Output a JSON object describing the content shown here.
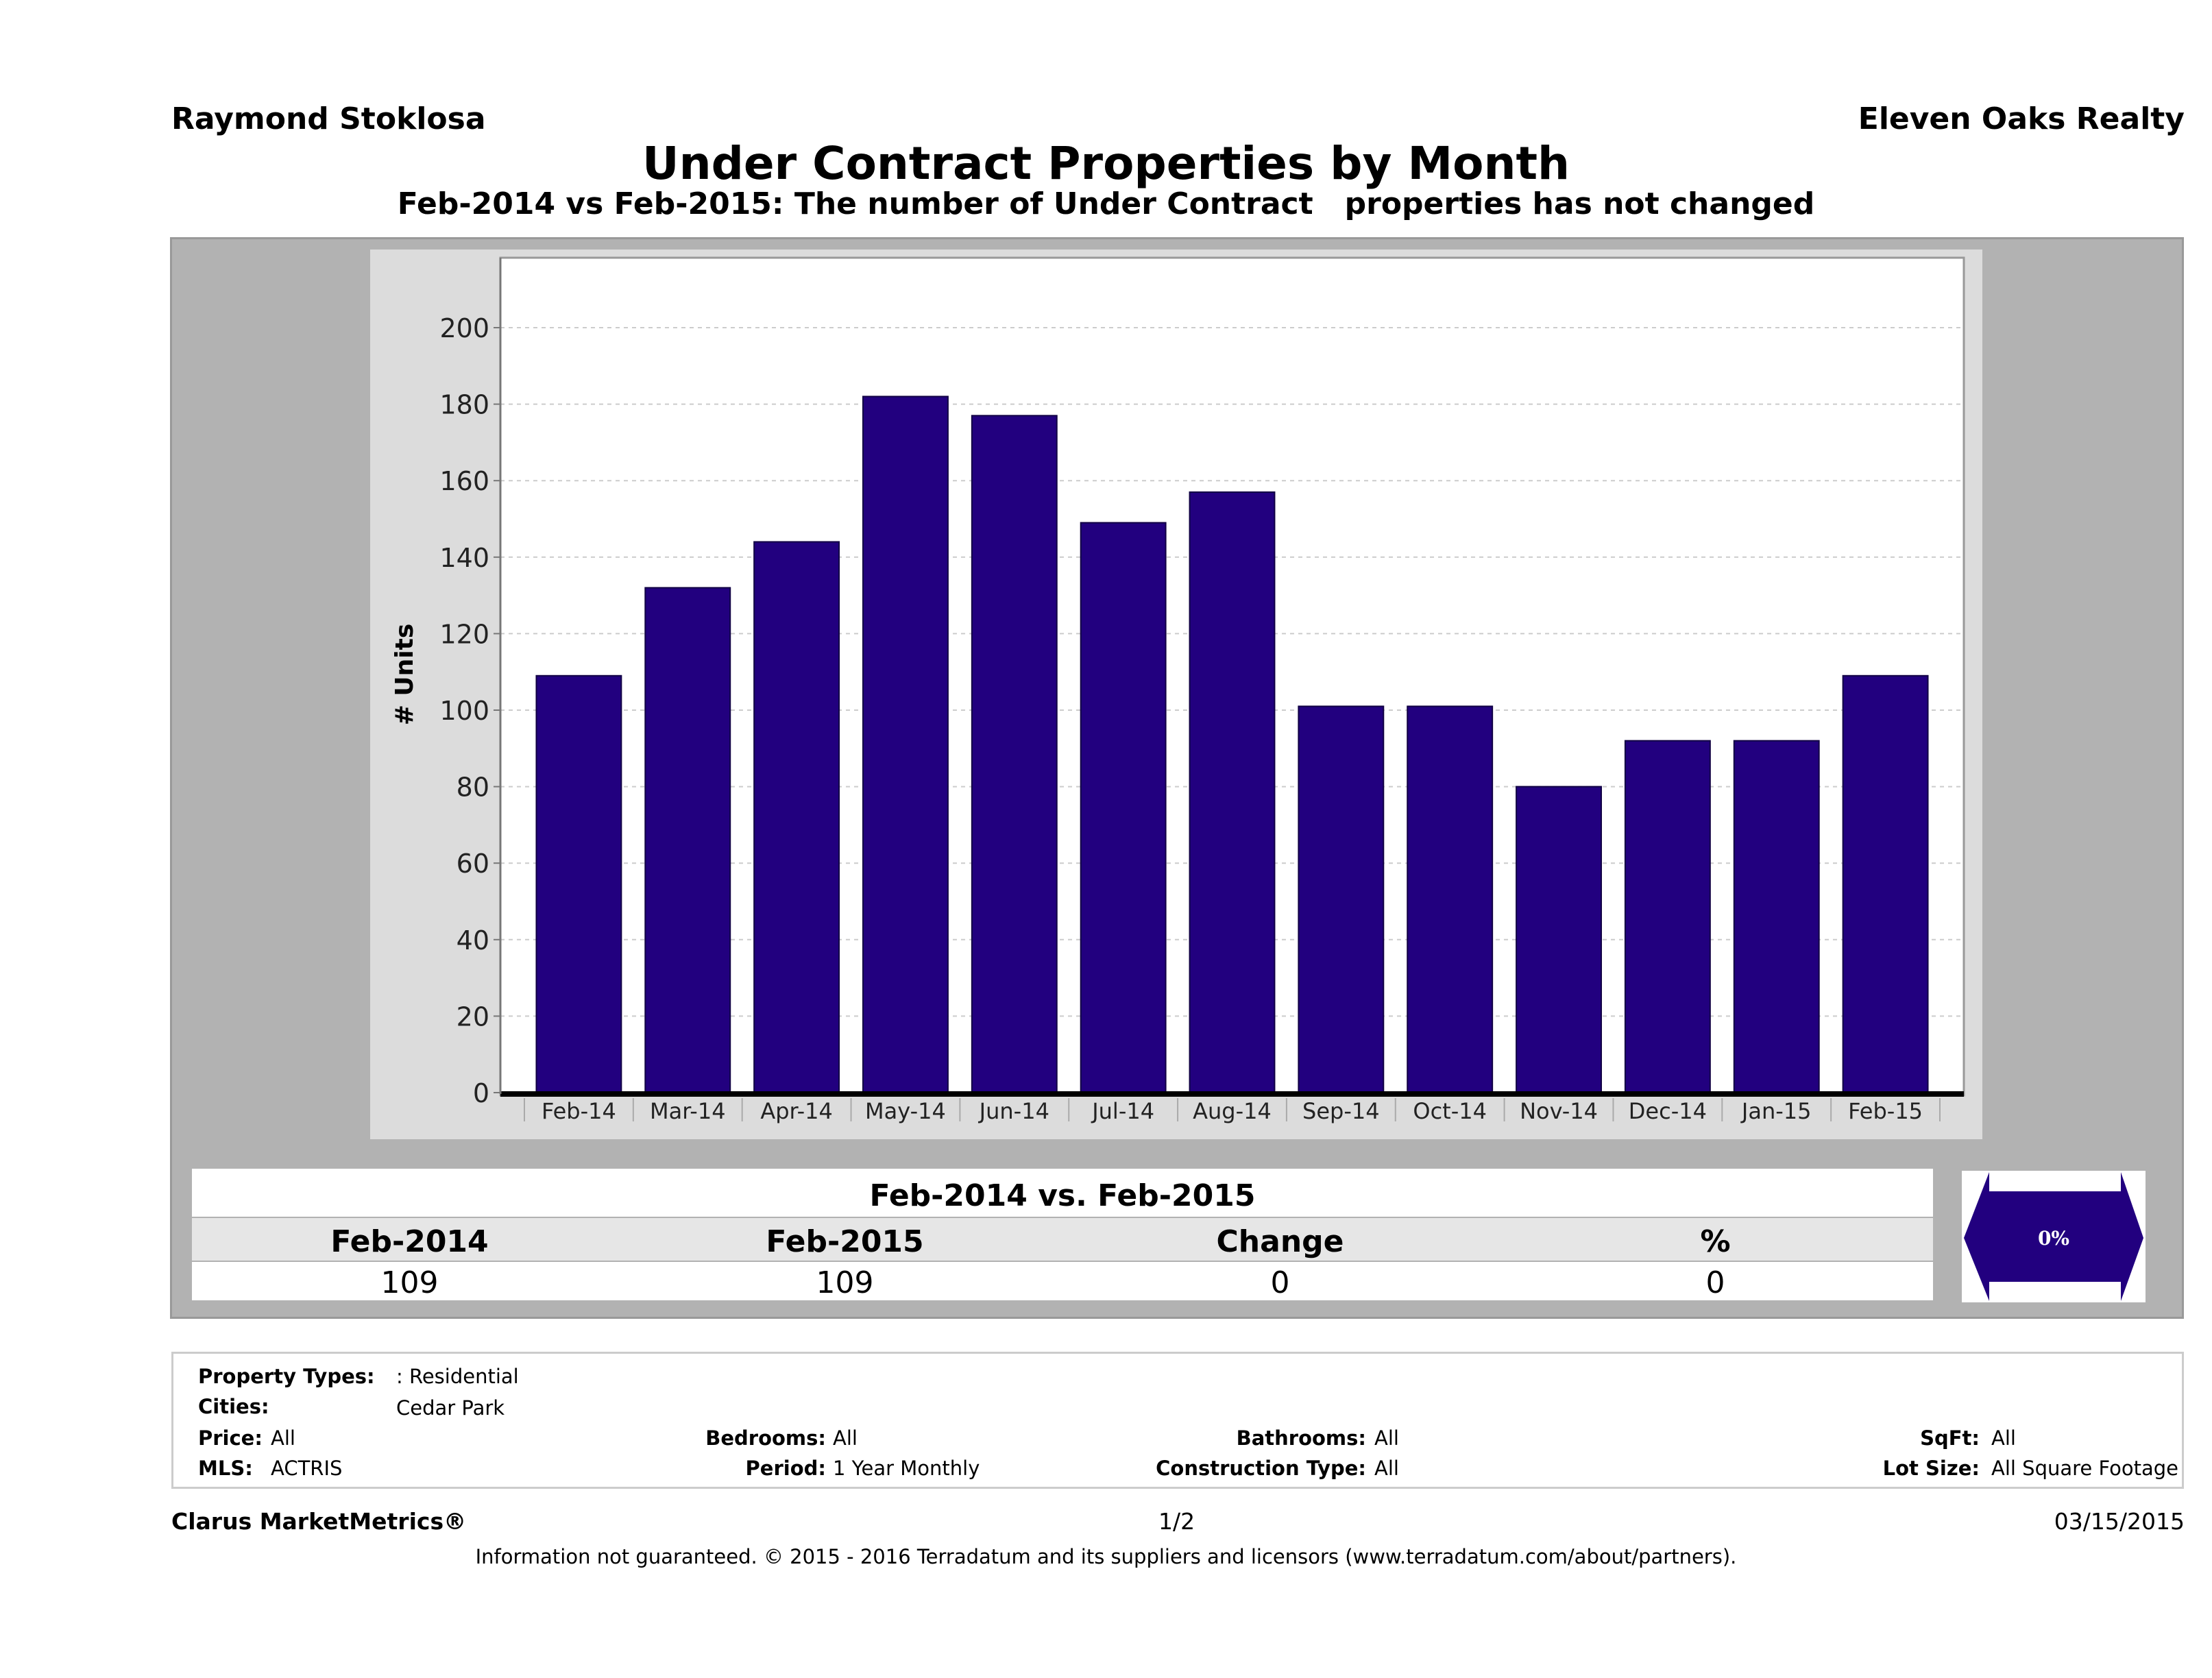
{
  "header": {
    "agent_name": "Raymond Stoklosa",
    "company": "Eleven Oaks Realty",
    "title": "Under Contract Properties by Month",
    "subtitle": "Feb-2014 vs Feb-2015: The number of Under Contract   properties has not changed"
  },
  "chart_data": {
    "type": "bar",
    "title": "Under Contract Properties by Month",
    "xlabel": "",
    "ylabel": "# Units",
    "categories": [
      "Feb-14",
      "Mar-14",
      "Apr-14",
      "May-14",
      "Jun-14",
      "Jul-14",
      "Aug-14",
      "Sep-14",
      "Oct-14",
      "Nov-14",
      "Dec-14",
      "Jan-15",
      "Feb-15"
    ],
    "values": [
      109,
      132,
      144,
      182,
      177,
      149,
      157,
      101,
      101,
      80,
      92,
      92,
      109
    ],
    "ylim": [
      0,
      220
    ],
    "yticks": [
      0,
      20,
      40,
      60,
      80,
      100,
      120,
      140,
      160,
      180,
      200
    ],
    "grid": true,
    "bar_color": "#22007f"
  },
  "comparison": {
    "heading": "Feb-2014 vs. Feb-2015",
    "columns": [
      "Feb-2014",
      "Feb-2015",
      "Change",
      "%"
    ],
    "values": [
      "109",
      "109",
      "0",
      "0"
    ],
    "badge_label": "0%",
    "badge_color": "#22007f"
  },
  "filters": {
    "property_types": {
      "label": "Property Types:",
      "value": ": Residential"
    },
    "cities": {
      "label": "Cities:",
      "value": "Cedar Park"
    },
    "price": {
      "label": "Price:",
      "value": "All"
    },
    "mls": {
      "label": "MLS:",
      "value": "ACTRIS"
    },
    "bedrooms": {
      "label": "Bedrooms:",
      "value": "All"
    },
    "period": {
      "label": "Period:",
      "value": "1 Year Monthly"
    },
    "bathrooms": {
      "label": "Bathrooms:",
      "value": "All"
    },
    "construction_type": {
      "label": "Construction Type:",
      "value": "All"
    },
    "sqft": {
      "label": "SqFt:",
      "value": "All"
    },
    "lot_size": {
      "label": "Lot Size:",
      "value": "All Square Footage"
    }
  },
  "footer": {
    "brand": "Clarus MarketMetrics®",
    "page": "1/2",
    "date": "03/15/2015",
    "disclaimer": "Information not guaranteed. © 2015 - 2016 Terradatum and its suppliers and licensors (www.terradatum.com/about/partners)."
  }
}
